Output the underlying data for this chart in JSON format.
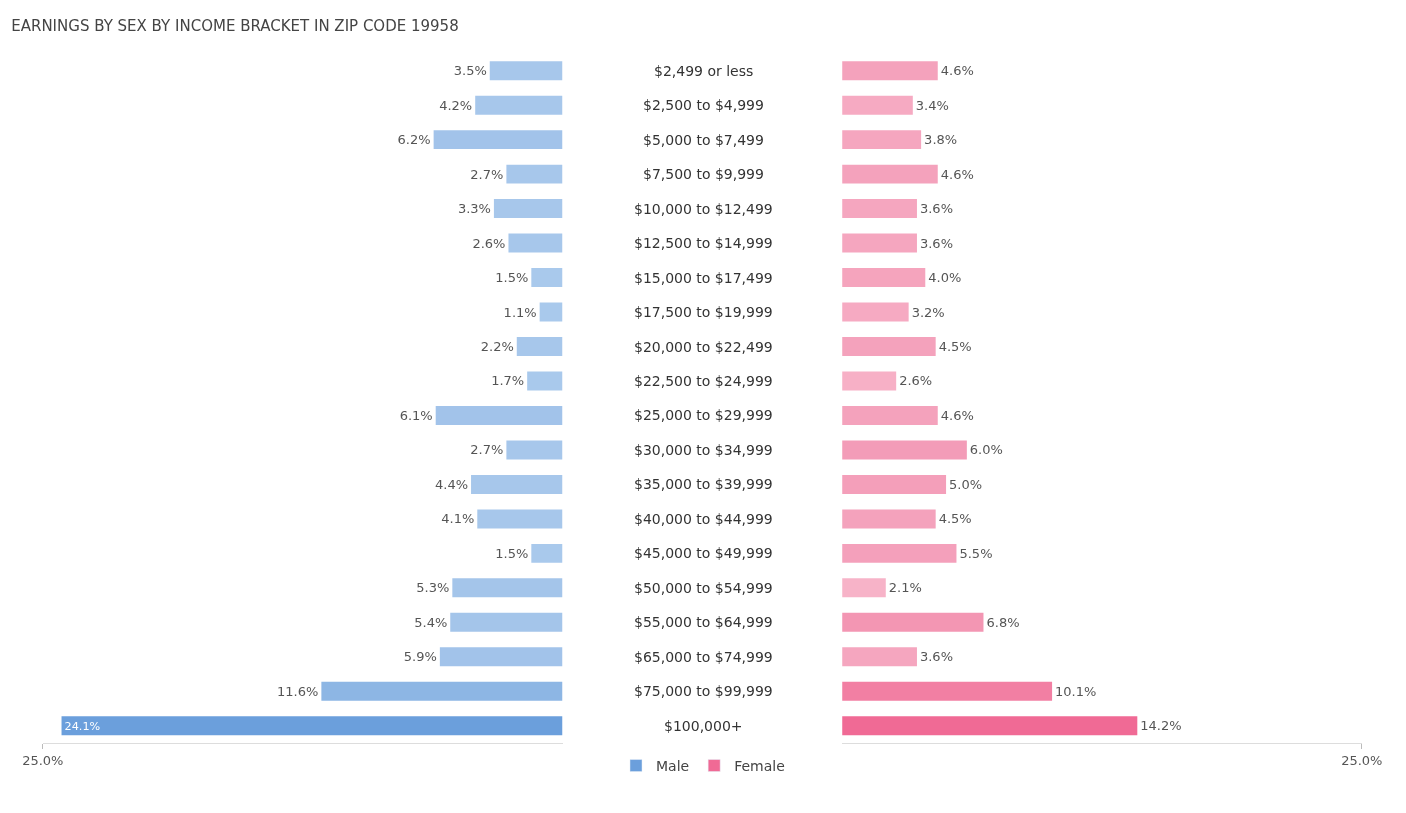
{
  "chart_data": [
    {
      "type": "bar",
      "orientation": "horizontal",
      "title": "EARNINGS BY SEX BY INCOME BRACKET IN ZIP CODE 19958",
      "categories": [
        "$2,499 or less",
        "$2,500 to $4,999",
        "$5,000 to $7,499",
        "$7,500 to $9,999",
        "$10,000 to $12,499",
        "$12,500 to $14,999",
        "$15,000 to $17,499",
        "$17,500 to $19,999",
        "$20,000 to $22,499",
        "$22,500 to $24,999",
        "$25,000 to $29,999",
        "$30,000 to $34,999",
        "$35,000 to $39,999",
        "$40,000 to $44,999",
        "$45,000 to $49,999",
        "$50,000 to $54,999",
        "$55,000 to $64,999",
        "$65,000 to $74,999",
        "$75,000 to $99,999",
        "$100,000+"
      ],
      "series": [
        {
          "name": "Male",
          "color": "#6b9fdc",
          "colors": [
            "#a7c7eb",
            "#a7c7eb",
            "#a2c3ea",
            "#a7c7eb",
            "#a7c7eb",
            "#a7c7eb",
            "#a9c9ec",
            "#a9c9ec",
            "#a7c7eb",
            "#a9c9ec",
            "#a2c3ea",
            "#a7c7eb",
            "#a7c7eb",
            "#a7c7eb",
            "#a9c9ec",
            "#a4c5ea",
            "#a4c5ea",
            "#a2c3ea",
            "#8db6e4",
            "#6b9fdc"
          ],
          "values": [
            3.5,
            4.2,
            6.2,
            2.7,
            3.3,
            2.6,
            1.5,
            1.1,
            2.2,
            1.7,
            6.1,
            2.7,
            4.4,
            4.1,
            1.5,
            5.3,
            5.4,
            5.9,
            11.6,
            24.1
          ],
          "value_labels": [
            "3.5%",
            "4.2%",
            "6.2%",
            "2.7%",
            "3.3%",
            "2.6%",
            "1.5%",
            "1.1%",
            "2.2%",
            "1.7%",
            "6.1%",
            "2.7%",
            "4.4%",
            "4.1%",
            "1.5%",
            "5.3%",
            "5.4%",
            "5.9%",
            "11.6%",
            "24.1%"
          ]
        }
      ],
      "xlim": [
        25,
        0
      ],
      "xticks": [
        {
          "value": 25,
          "label": "25.0%"
        }
      ],
      "legend": "bottom"
    },
    {
      "type": "bar",
      "orientation": "horizontal",
      "categories": [
        "$2,499 or less",
        "$2,500 to $4,999",
        "$5,000 to $7,499",
        "$7,500 to $9,999",
        "$10,000 to $12,499",
        "$12,500 to $14,999",
        "$15,000 to $17,499",
        "$17,500 to $19,999",
        "$20,000 to $22,499",
        "$22,500 to $24,999",
        "$25,000 to $29,999",
        "$30,000 to $34,999",
        "$35,000 to $39,999",
        "$40,000 to $44,999",
        "$45,000 to $49,999",
        "$50,000 to $54,999",
        "$55,000 to $64,999",
        "$65,000 to $74,999",
        "$75,000 to $99,999",
        "$100,000+"
      ],
      "series": [
        {
          "name": "Female",
          "color": "#f06a95",
          "colors": [
            "#f4a2bc",
            "#f6aac2",
            "#f5a6bf",
            "#f4a2bc",
            "#f5a6bf",
            "#f5a6bf",
            "#f5a4bd",
            "#f6aac2",
            "#f4a2bc",
            "#f7b0c6",
            "#f4a2bc",
            "#f39cb8",
            "#f49fba",
            "#f4a2bc",
            "#f4a0bb",
            "#f7b3c8",
            "#f396b3",
            "#f5a6bf",
            "#f27fa3",
            "#f06a95"
          ],
          "values": [
            4.6,
            3.4,
            3.8,
            4.6,
            3.6,
            3.6,
            4.0,
            3.2,
            4.5,
            2.6,
            4.6,
            6.0,
            5.0,
            4.5,
            5.5,
            2.1,
            6.8,
            3.6,
            10.1,
            14.2
          ],
          "value_labels": [
            "4.6%",
            "3.4%",
            "3.8%",
            "4.6%",
            "3.6%",
            "3.6%",
            "4.0%",
            "3.2%",
            "4.5%",
            "2.6%",
            "4.6%",
            "6.0%",
            "5.0%",
            "4.5%",
            "5.5%",
            "2.1%",
            "6.8%",
            "3.6%",
            "10.1%",
            "14.2%"
          ]
        }
      ],
      "xlim": [
        0,
        25
      ],
      "xticks": [
        {
          "value": 25,
          "label": "25.0%"
        }
      ],
      "tick_labels": "x",
      "legend": "bottom"
    }
  ]
}
